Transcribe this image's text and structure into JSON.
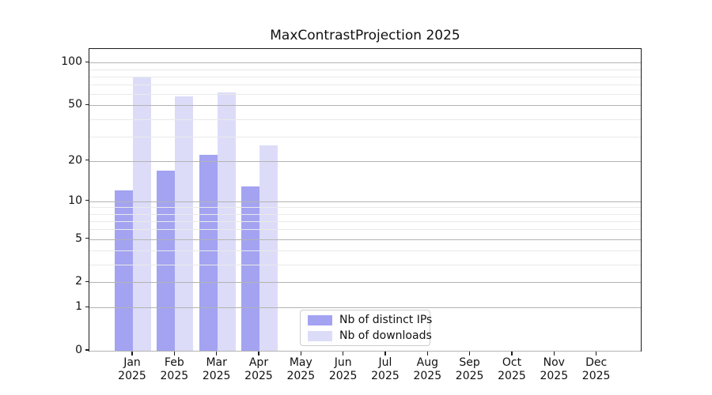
{
  "chart_data": {
    "type": "bar",
    "title": "MaxContrastProjection 2025",
    "categories": [
      "Jan",
      "Feb",
      "Mar",
      "Apr",
      "May",
      "Jun",
      "Jul",
      "Aug",
      "Sep",
      "Oct",
      "Nov",
      "Dec"
    ],
    "year_suffix": "2025",
    "series": [
      {
        "name": "Nb of distinct IPs",
        "color": "#a3a3f2",
        "values": [
          12,
          17,
          22,
          13,
          null,
          null,
          null,
          null,
          null,
          null,
          null,
          null
        ]
      },
      {
        "name": "Nb of downloads",
        "color": "#dcdcf9",
        "values": [
          80,
          58,
          62,
          26,
          null,
          null,
          null,
          null,
          null,
          null,
          null,
          null
        ]
      }
    ],
    "y_axis": {
      "scale": "log1p",
      "major_ticks": [
        0,
        1,
        2,
        5,
        10,
        20,
        50,
        100
      ],
      "minor_gridlines": [
        3,
        4,
        6,
        7,
        8,
        9,
        30,
        40,
        60,
        70,
        80,
        90
      ],
      "range": [
        0,
        124
      ]
    },
    "xlabel": "",
    "ylabel": "",
    "legend": {
      "position": "bottom-center",
      "entries": [
        "Nb of distinct IPs",
        "Nb of downloads"
      ]
    },
    "grid": {
      "major_color": "#b3b3b3",
      "minor_color": "#e9e9e9",
      "drawn_over_bars": true
    },
    "axis_color": "#1c1c1c"
  }
}
